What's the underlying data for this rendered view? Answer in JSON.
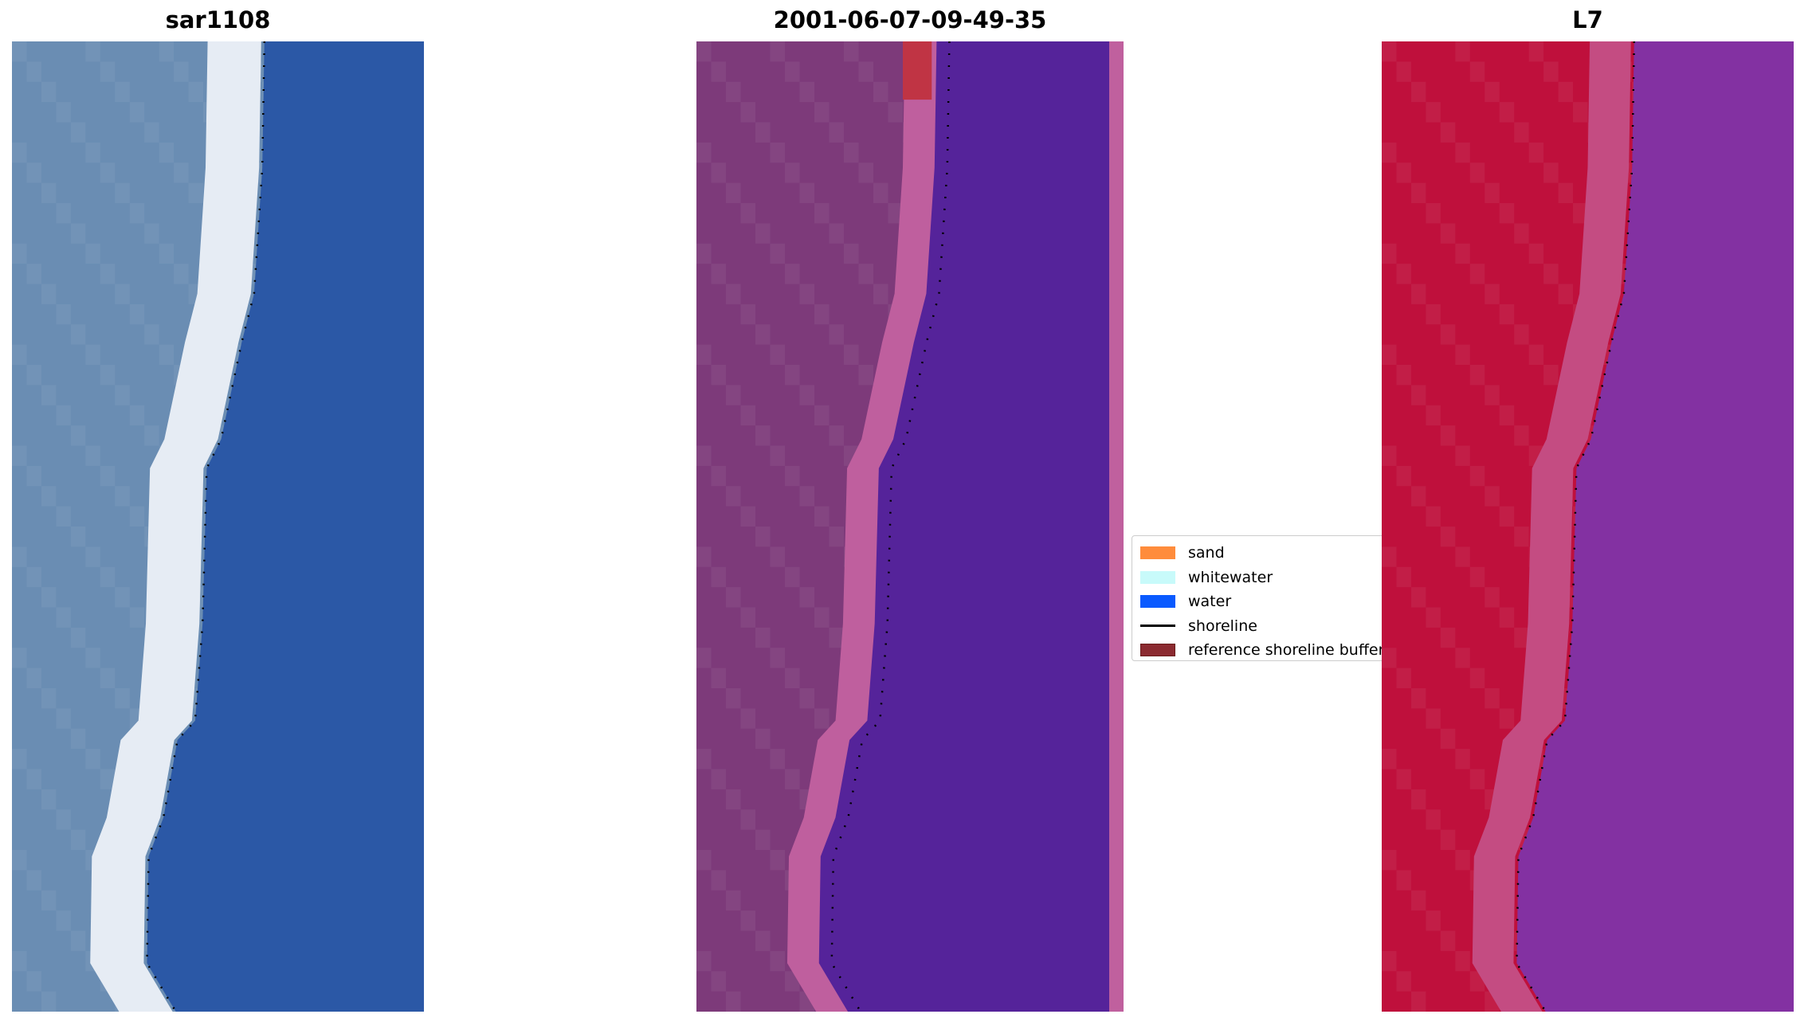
{
  "panels": [
    {
      "title": "sar1108",
      "colors": {
        "land": "#6a8db3",
        "band": "#e6ecf4",
        "water": "#2b58a6"
      }
    },
    {
      "title": "2001-06-07-09-49-35",
      "colors": {
        "land": "#7d3a7a",
        "band": "#bf5f9e",
        "water": "#55239a",
        "strip": "#c0609e",
        "patch": "#c03444"
      }
    },
    {
      "title": "L7",
      "colors": {
        "land": "#bf103c",
        "band": "#c44c82",
        "water": "#8331a2"
      }
    }
  ],
  "legend": {
    "items": [
      {
        "label": "sand",
        "color": "#ff8c3c",
        "type": "patch"
      },
      {
        "label": "whitewater",
        "color": "#c8fafa",
        "type": "patch"
      },
      {
        "label": "water",
        "color": "#0a5aff",
        "type": "patch"
      },
      {
        "label": "shoreline",
        "color": "#000000",
        "type": "line"
      },
      {
        "label": "reference shoreline buffer",
        "color": "#8b2a30",
        "type": "patch"
      }
    ]
  }
}
